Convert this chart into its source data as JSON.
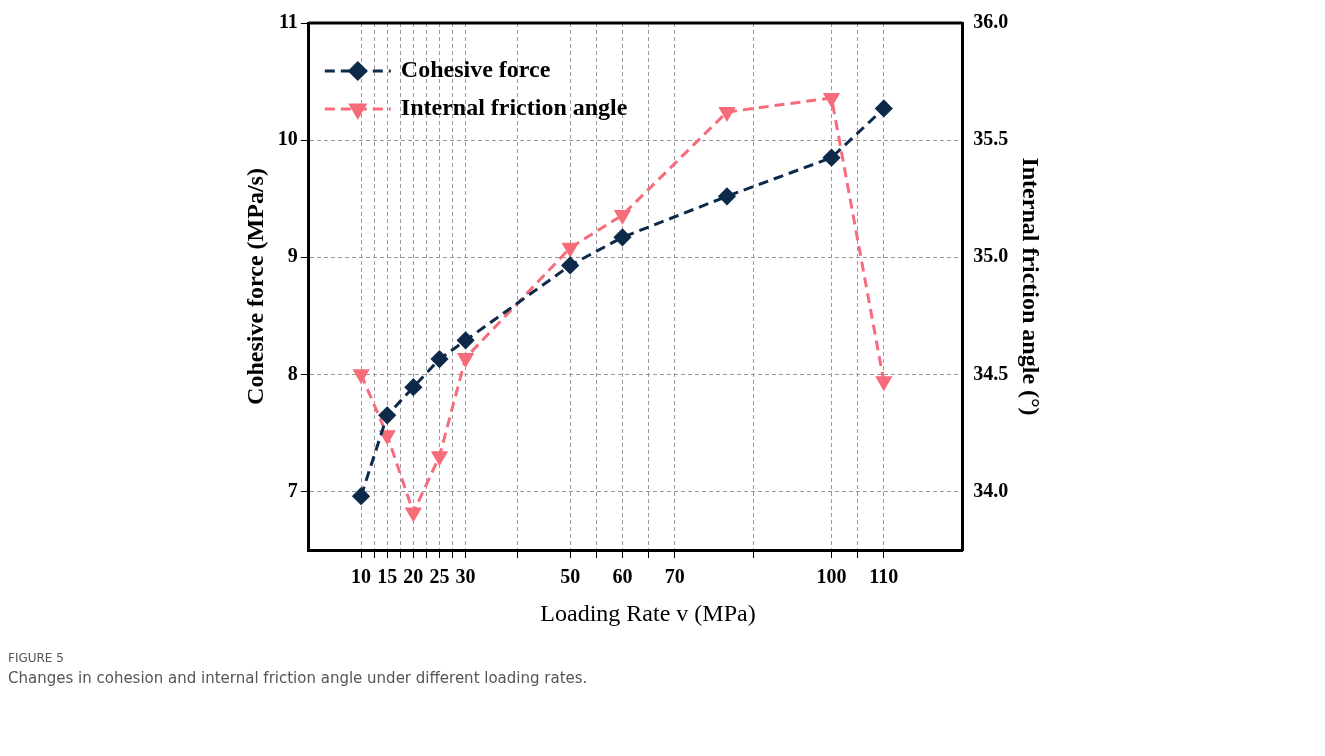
{
  "chart_data": {
    "type": "line",
    "xlabel": "Loading Rate v (MPa)",
    "annotations": [
      "FIGURE 5",
      "Changes in cohesion and internal friction angle under different loading rates."
    ],
    "ylabel": "Cohesive force (MPa/s)",
    "y2label": "Internal friction angle (°)",
    "x": [
      10,
      15,
      20,
      25,
      30,
      50,
      60,
      80,
      100,
      110
    ],
    "series": [
      {
        "name": "Cohesive force",
        "color": "#0d2a4a",
        "marker": "diamond",
        "values": [
          6.96,
          7.65,
          7.89,
          8.13,
          8.29,
          8.93,
          9.17,
          9.52,
          9.85,
          10.27
        ]
      },
      {
        "name": "Internal friction angle",
        "color": "#f76c7a",
        "marker": "triangle",
        "axis": "y2",
        "values": [
          34.5,
          34.24,
          33.91,
          34.15,
          34.57,
          35.04,
          35.18,
          35.62,
          35.68,
          34.47
        ]
      }
    ],
    "xlim": [
      0,
      125
    ],
    "xticks": [
      10,
      {
        "value": 12.5,
        "label": null
      },
      15,
      {
        "value": 17.5,
        "label": null
      },
      20,
      {
        "value": 22.5,
        "label": null
      },
      25,
      {
        "value": 27.5,
        "label": null
      },
      30,
      {
        "value": 40,
        "label": null
      },
      50,
      {
        "value": 55,
        "label": null
      },
      60,
      {
        "value": 65,
        "label": null
      },
      70,
      {
        "value": 85,
        "label": null
      },
      100,
      {
        "value": 105,
        "label": null
      },
      110
    ],
    "ylim": [
      6.5,
      11
    ],
    "yticks": [
      7,
      8,
      9,
      10,
      11
    ],
    "y2lim": [
      33.75,
      36
    ],
    "y2ticks": [
      {
        "value": 34,
        "label": "34.0"
      },
      34.5,
      {
        "value": 35,
        "label": "35.0"
      },
      35.5,
      {
        "value": 36,
        "label": "36.0"
      }
    ],
    "grid": true,
    "legend": "top left",
    "line_style": "dashed"
  }
}
